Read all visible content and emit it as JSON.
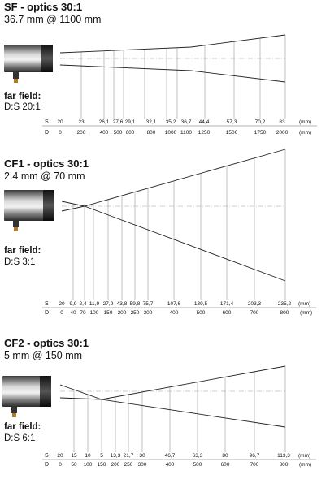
{
  "panels": [
    {
      "title": "SF - optics 30:1",
      "subtitle": "36.7 mm @ 1100 mm",
      "far_field_label": "far field:",
      "far_field_value": "D:S 20:1",
      "row_s_label": "S",
      "row_d_label": "D",
      "s_values": [
        "20",
        "23",
        "26,1",
        "27,6",
        "29,1",
        "32,1",
        "35,2",
        "36,7",
        "44,4",
        "57,3",
        "70,2",
        "83"
      ],
      "s_unit": "(mm)",
      "d_values": [
        "0",
        "200",
        "400",
        "500",
        "600",
        "800",
        "1000",
        "1100",
        "1250",
        "1500",
        "1750",
        "2000"
      ],
      "d_unit": "(mm)"
    },
    {
      "title": "CF1 - optics 30:1",
      "subtitle": "2.4 mm @ 70 mm",
      "far_field_label": "far field:",
      "far_field_value": "D:S 3:1",
      "row_s_label": "S",
      "row_d_label": "D",
      "s_values": [
        "20",
        "9,9",
        "2,4",
        "11,9",
        "27,9",
        "43,8",
        "59,8",
        "75,7",
        "107,6",
        "139,5",
        "171,4",
        "203,3",
        "235,2"
      ],
      "s_unit": "(mm)",
      "d_values": [
        "0",
        "40",
        "70",
        "100",
        "150",
        "200",
        "250",
        "300",
        "400",
        "500",
        "600",
        "700",
        "800"
      ],
      "d_unit": "(mm)"
    },
    {
      "title": "CF2 - optics 30:1",
      "subtitle": "5 mm @ 150 mm",
      "far_field_label": "far field:",
      "far_field_value": "D:S 6:1",
      "row_s_label": "S",
      "row_d_label": "D",
      "s_values": [
        "20",
        "15",
        "10",
        "5",
        "13,3",
        "21,7",
        "30",
        "46,7",
        "63,3",
        "80",
        "96,7",
        "113,3"
      ],
      "s_unit": "(mm)",
      "d_values": [
        "0",
        "50",
        "100",
        "150",
        "200",
        "250",
        "300",
        "400",
        "500",
        "600",
        "700",
        "800"
      ],
      "d_unit": "(mm)"
    }
  ]
}
